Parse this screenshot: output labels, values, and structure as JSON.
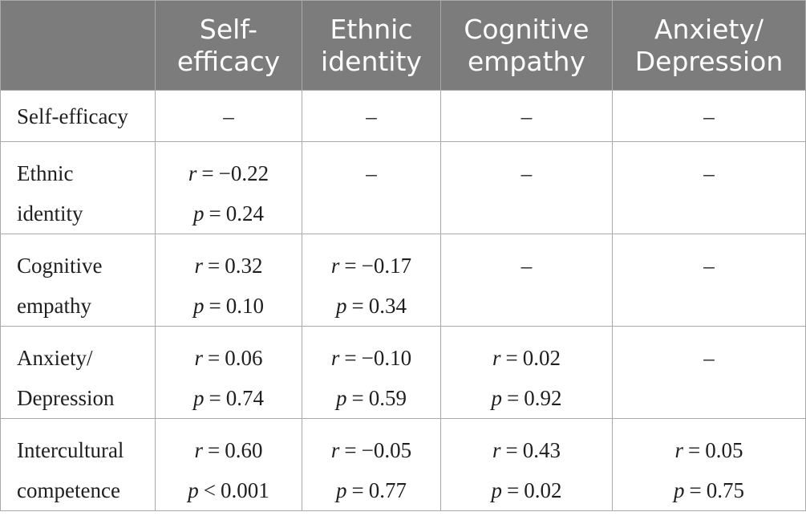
{
  "table": {
    "header": [
      "",
      [
        "Self-",
        "efficacy"
      ],
      [
        "Ethnic",
        "identity"
      ],
      [
        "Cognitive",
        "empathy"
      ],
      [
        "Anxiety/",
        "Depression"
      ]
    ],
    "rows": [
      {
        "label": [
          "Self-efficacy"
        ],
        "cells": [
          {
            "dash": "–"
          },
          {
            "dash": "–"
          },
          {
            "dash": "–"
          },
          {
            "dash": "–"
          }
        ]
      },
      {
        "label": [
          "Ethnic",
          "identity"
        ],
        "cells": [
          {
            "r": "−0.22",
            "p_op": "=",
            "p": "0.24"
          },
          {
            "dash": "–"
          },
          {
            "dash": "–"
          },
          {
            "dash": "–"
          }
        ]
      },
      {
        "label": [
          "Cognitive",
          "empathy"
        ],
        "cells": [
          {
            "r": "0.32",
            "p_op": "=",
            "p": "0.10"
          },
          {
            "r": "−0.17",
            "p_op": "=",
            "p": "0.34"
          },
          {
            "dash": "–"
          },
          {
            "dash": "–"
          }
        ]
      },
      {
        "label": [
          "Anxiety/",
          "Depression"
        ],
        "cells": [
          {
            "r": "0.06",
            "p_op": "=",
            "p": "0.74"
          },
          {
            "r": "−0.10",
            "p_op": "=",
            "p": "0.59"
          },
          {
            "r": "0.02",
            "p_op": "=",
            "p": "0.92"
          },
          {
            "dash": "–"
          }
        ]
      },
      {
        "label": [
          "Intercultural",
          "competence"
        ],
        "cells": [
          {
            "r": "0.60",
            "p_op": "<",
            "p": "0.001"
          },
          {
            "r": "−0.05",
            "p_op": "=",
            "p": "0.77"
          },
          {
            "r": "0.43",
            "p_op": "=",
            "p": "0.02"
          },
          {
            "r": "0.05",
            "p_op": "=",
            "p": "0.75"
          }
        ]
      }
    ],
    "stat_labels": {
      "r": "r",
      "p": "p",
      "eq": "="
    }
  }
}
